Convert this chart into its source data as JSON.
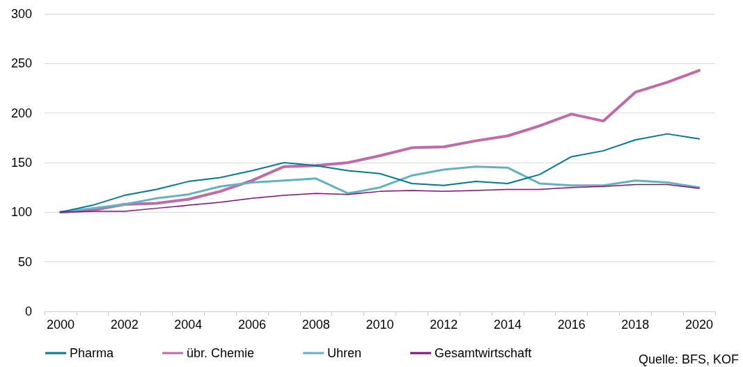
{
  "chart_data": {
    "type": "line",
    "categories": [
      "2000",
      null,
      "2002",
      null,
      "2004",
      null,
      "2006",
      null,
      "2008",
      null,
      "2010",
      null,
      "2012",
      null,
      "2014",
      null,
      "2016",
      null,
      "2018",
      null,
      "2020"
    ],
    "series": [
      {
        "name": "Pharma",
        "color": "#007a94",
        "values": [
          100,
          107,
          117,
          123,
          131,
          135,
          142,
          150,
          147,
          142,
          139,
          129,
          127,
          131,
          129,
          138,
          156,
          162,
          173,
          179,
          174
        ]
      },
      {
        "name": "übr. Chemie",
        "color": "#c06aa8",
        "values": [
          100,
          102,
          108,
          109,
          113,
          121,
          132,
          146,
          147,
          150,
          157,
          165,
          166,
          172,
          177,
          187,
          199,
          192,
          221,
          231,
          243
        ]
      },
      {
        "name": "Uhren",
        "color": "#64b1c2",
        "values": [
          100,
          104,
          108,
          114,
          118,
          126,
          130,
          132,
          134,
          119,
          125,
          137,
          143,
          146,
          145,
          129,
          127,
          127,
          132,
          130,
          125
        ]
      },
      {
        "name": "Gesamtwirtschaft",
        "color": "#8b0a7a",
        "values": [
          100,
          101,
          101,
          104,
          107,
          110,
          114,
          117,
          119,
          118,
          121,
          122,
          121,
          122,
          123,
          123,
          125,
          126,
          128,
          128,
          124
        ]
      }
    ],
    "ylim": [
      0,
      300
    ],
    "yticks": [
      0,
      50,
      100,
      150,
      200,
      250,
      300
    ],
    "grid": "y",
    "legend": "bottom left",
    "marker": "none",
    "line_style": "solid",
    "annotations": [
      "Quelle: BFS, KOF"
    ]
  }
}
